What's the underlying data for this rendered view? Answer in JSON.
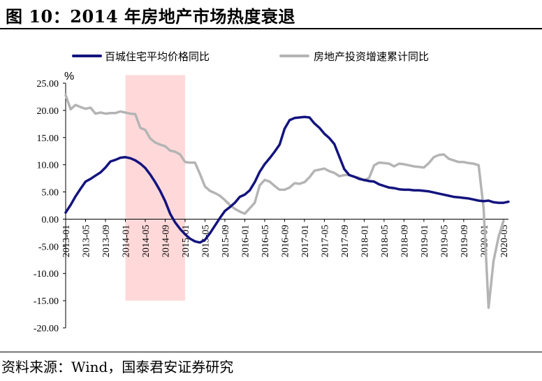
{
  "title": "图 10：2014 年房地产市场热度衰退",
  "source": "资料来源：Wind，国泰君安证券研究",
  "chart_data": {
    "type": "line",
    "unit": "%",
    "ylim": [
      -20,
      25
    ],
    "yticks": [
      25,
      20,
      15,
      10,
      5,
      0,
      -5,
      -10,
      -15,
      -20
    ],
    "ytick_labels": [
      "25.00",
      "20.00",
      "15.00",
      "10.00",
      "5.00",
      "0.00",
      "-5.00",
      "-10.00",
      "-15.00",
      "-20.00"
    ],
    "x_start": "2013-01",
    "x_end": "2020-06",
    "xtick_labels": [
      "2013-01",
      "2013-05",
      "2013-09",
      "2014-01",
      "2014-05",
      "2014-09",
      "2015-01",
      "2015-05",
      "2015-09",
      "2016-01",
      "2016-05",
      "2016-09",
      "2017-01",
      "2017-05",
      "2017-09",
      "2018-01",
      "2018-05",
      "2018-09",
      "2019-01",
      "2019-05",
      "2019-09",
      "2020-01",
      "2020-05"
    ],
    "legend_position": "top",
    "grid": false,
    "highlight": {
      "x_from": "2014-01",
      "x_to": "2015-01",
      "y_from": -15,
      "y_to": 26.5,
      "color": "#ffd9d9"
    },
    "series": [
      {
        "name": "百城住宅平均价格同比",
        "color": "#13137e",
        "points": [
          [
            "2013-01",
            1.2
          ],
          [
            "2013-02",
            2.6
          ],
          [
            "2013-03",
            4.2
          ],
          [
            "2013-04",
            5.6
          ],
          [
            "2013-05",
            6.9
          ],
          [
            "2013-06",
            7.4
          ],
          [
            "2013-07",
            8.0
          ],
          [
            "2013-08",
            8.6
          ],
          [
            "2013-09",
            9.5
          ],
          [
            "2013-10",
            10.6
          ],
          [
            "2013-11",
            10.9
          ],
          [
            "2013-12",
            11.3
          ],
          [
            "2014-01",
            11.4
          ],
          [
            "2014-02",
            11.2
          ],
          [
            "2014-03",
            10.8
          ],
          [
            "2014-04",
            10.2
          ],
          [
            "2014-05",
            9.4
          ],
          [
            "2014-06",
            8.2
          ],
          [
            "2014-07",
            6.8
          ],
          [
            "2014-08",
            5.2
          ],
          [
            "2014-09",
            3.3
          ],
          [
            "2014-10",
            1.0
          ],
          [
            "2014-11",
            -0.6
          ],
          [
            "2014-12",
            -1.8
          ],
          [
            "2015-01",
            -2.8
          ],
          [
            "2015-02",
            -3.6
          ],
          [
            "2015-03",
            -4.1
          ],
          [
            "2015-04",
            -4.3
          ],
          [
            "2015-05",
            -3.8
          ],
          [
            "2015-06",
            -2.6
          ],
          [
            "2015-07",
            -1.2
          ],
          [
            "2015-08",
            0.2
          ],
          [
            "2015-09",
            1.5
          ],
          [
            "2015-10",
            2.2
          ],
          [
            "2015-11",
            3.0
          ],
          [
            "2015-12",
            4.1
          ],
          [
            "2016-01",
            4.5
          ],
          [
            "2016-02",
            5.3
          ],
          [
            "2016-03",
            6.8
          ],
          [
            "2016-04",
            8.7
          ],
          [
            "2016-05",
            10.1
          ],
          [
            "2016-06",
            11.2
          ],
          [
            "2016-07",
            12.4
          ],
          [
            "2016-08",
            13.7
          ],
          [
            "2016-09",
            16.6
          ],
          [
            "2016-10",
            18.2
          ],
          [
            "2016-11",
            18.6
          ],
          [
            "2016-12",
            18.7
          ],
          [
            "2017-01",
            18.8
          ],
          [
            "2017-02",
            18.7
          ],
          [
            "2017-03",
            17.6
          ],
          [
            "2017-04",
            16.8
          ],
          [
            "2017-05",
            15.7
          ],
          [
            "2017-06",
            14.9
          ],
          [
            "2017-07",
            13.8
          ],
          [
            "2017-08",
            11.5
          ],
          [
            "2017-09",
            9.2
          ],
          [
            "2017-10",
            8.1
          ],
          [
            "2017-11",
            7.8
          ],
          [
            "2017-12",
            7.4
          ],
          [
            "2018-01",
            7.2
          ],
          [
            "2018-02",
            7.0
          ],
          [
            "2018-03",
            6.9
          ],
          [
            "2018-04",
            6.4
          ],
          [
            "2018-05",
            6.1
          ],
          [
            "2018-06",
            5.8
          ],
          [
            "2018-07",
            5.7
          ],
          [
            "2018-08",
            5.5
          ],
          [
            "2018-09",
            5.4
          ],
          [
            "2018-10",
            5.4
          ],
          [
            "2018-11",
            5.3
          ],
          [
            "2018-12",
            5.3
          ],
          [
            "2019-01",
            5.2
          ],
          [
            "2019-02",
            5.1
          ],
          [
            "2019-03",
            4.9
          ],
          [
            "2019-04",
            4.7
          ],
          [
            "2019-05",
            4.5
          ],
          [
            "2019-06",
            4.3
          ],
          [
            "2019-07",
            4.1
          ],
          [
            "2019-08",
            4.0
          ],
          [
            "2019-09",
            3.9
          ],
          [
            "2019-10",
            3.8
          ],
          [
            "2019-11",
            3.6
          ],
          [
            "2019-12",
            3.4
          ],
          [
            "2020-01",
            3.3
          ],
          [
            "2020-02",
            3.4
          ],
          [
            "2020-03",
            3.1
          ],
          [
            "2020-04",
            3.0
          ],
          [
            "2020-05",
            3.0
          ],
          [
            "2020-06",
            3.2
          ]
        ]
      },
      {
        "name": "房地产投资增速累计同比",
        "color": "#b4b4b4",
        "points": [
          [
            "2013-01",
            22.8
          ],
          [
            "2013-02",
            20.2
          ],
          [
            "2013-03",
            21.0
          ],
          [
            "2013-04",
            20.6
          ],
          [
            "2013-05",
            20.3
          ],
          [
            "2013-06",
            20.5
          ],
          [
            "2013-07",
            19.4
          ],
          [
            "2013-08",
            19.6
          ],
          [
            "2013-09",
            19.4
          ],
          [
            "2013-10",
            19.5
          ],
          [
            "2013-11",
            19.5
          ],
          [
            "2013-12",
            19.8
          ],
          [
            "2014-01",
            19.6
          ],
          [
            "2014-02",
            19.4
          ],
          [
            "2014-03",
            19.3
          ],
          [
            "2014-04",
            16.8
          ],
          [
            "2014-05",
            16.4
          ],
          [
            "2014-06",
            14.8
          ],
          [
            "2014-07",
            14.1
          ],
          [
            "2014-08",
            13.7
          ],
          [
            "2014-09",
            13.4
          ],
          [
            "2014-10",
            12.6
          ],
          [
            "2014-11",
            12.4
          ],
          [
            "2014-12",
            11.9
          ],
          [
            "2015-01",
            10.5
          ],
          [
            "2015-02",
            10.4
          ],
          [
            "2015-03",
            10.4
          ],
          [
            "2015-04",
            8.3
          ],
          [
            "2015-05",
            6.0
          ],
          [
            "2015-06",
            5.2
          ],
          [
            "2015-07",
            4.8
          ],
          [
            "2015-08",
            4.3
          ],
          [
            "2015-09",
            3.5
          ],
          [
            "2015-10",
            2.6
          ],
          [
            "2015-11",
            1.9
          ],
          [
            "2015-12",
            1.4
          ],
          [
            "2016-01",
            1.0
          ],
          [
            "2016-02",
            2.0
          ],
          [
            "2016-03",
            3.0
          ],
          [
            "2016-04",
            6.2
          ],
          [
            "2016-05",
            7.2
          ],
          [
            "2016-06",
            6.9
          ],
          [
            "2016-07",
            6.1
          ],
          [
            "2016-08",
            5.4
          ],
          [
            "2016-09",
            5.4
          ],
          [
            "2016-10",
            5.8
          ],
          [
            "2016-11",
            6.6
          ],
          [
            "2016-12",
            6.5
          ],
          [
            "2017-01",
            6.8
          ],
          [
            "2017-02",
            7.7
          ],
          [
            "2017-03",
            8.9
          ],
          [
            "2017-04",
            9.1
          ],
          [
            "2017-05",
            9.3
          ],
          [
            "2017-06",
            8.8
          ],
          [
            "2017-07",
            8.5
          ],
          [
            "2017-08",
            7.9
          ],
          [
            "2017-09",
            8.1
          ],
          [
            "2017-10",
            8.1
          ],
          [
            "2017-11",
            7.8
          ],
          [
            "2017-12",
            7.6
          ],
          [
            "2018-01",
            7.1
          ],
          [
            "2018-02",
            7.6
          ],
          [
            "2018-03",
            9.9
          ],
          [
            "2018-04",
            10.4
          ],
          [
            "2018-05",
            10.3
          ],
          [
            "2018-06",
            10.2
          ],
          [
            "2018-07",
            9.7
          ],
          [
            "2018-08",
            10.2
          ],
          [
            "2018-09",
            10.1
          ],
          [
            "2018-10",
            9.9
          ],
          [
            "2018-11",
            9.7
          ],
          [
            "2018-12",
            9.6
          ],
          [
            "2019-01",
            9.5
          ],
          [
            "2019-02",
            10.3
          ],
          [
            "2019-03",
            11.4
          ],
          [
            "2019-04",
            11.8
          ],
          [
            "2019-05",
            11.9
          ],
          [
            "2019-06",
            11.1
          ],
          [
            "2019-07",
            10.8
          ],
          [
            "2019-08",
            10.5
          ],
          [
            "2019-09",
            10.5
          ],
          [
            "2019-10",
            10.3
          ],
          [
            "2019-11",
            10.2
          ],
          [
            "2019-12",
            9.9
          ],
          [
            "2020-01",
            2.0
          ],
          [
            "2020-02",
            -16.3
          ],
          [
            "2020-03",
            -7.7
          ],
          [
            "2020-04",
            -3.3
          ],
          [
            "2020-05",
            -0.3
          ]
        ]
      }
    ]
  }
}
